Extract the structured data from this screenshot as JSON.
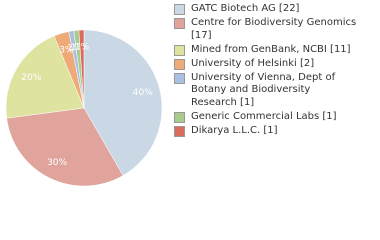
{
  "chart_data": {
    "type": "pie",
    "categories": [
      "GATC Biotech AG [22]",
      "Centre for Biodiversity Genomics [17]",
      "Mined from GenBank, NCBI [11]",
      "University of Helsinki [2]",
      "University of Vienna, Dept of Botany and Biodiversity Research [1]",
      "Generic Commercial Labs [1]",
      "Dikarya L.L.C. [1]"
    ],
    "values": [
      40,
      30,
      20,
      3,
      1,
      1,
      1
    ],
    "value_labels": [
      "40%",
      "30%",
      "20%",
      "3%",
      "1%",
      "1%",
      "1%"
    ],
    "colors": [
      "#cad8e6",
      "#e0a49d",
      "#dfe3a0",
      "#eeab78",
      "#aac0e2",
      "#a9cc8d",
      "#db6b5b"
    ]
  }
}
